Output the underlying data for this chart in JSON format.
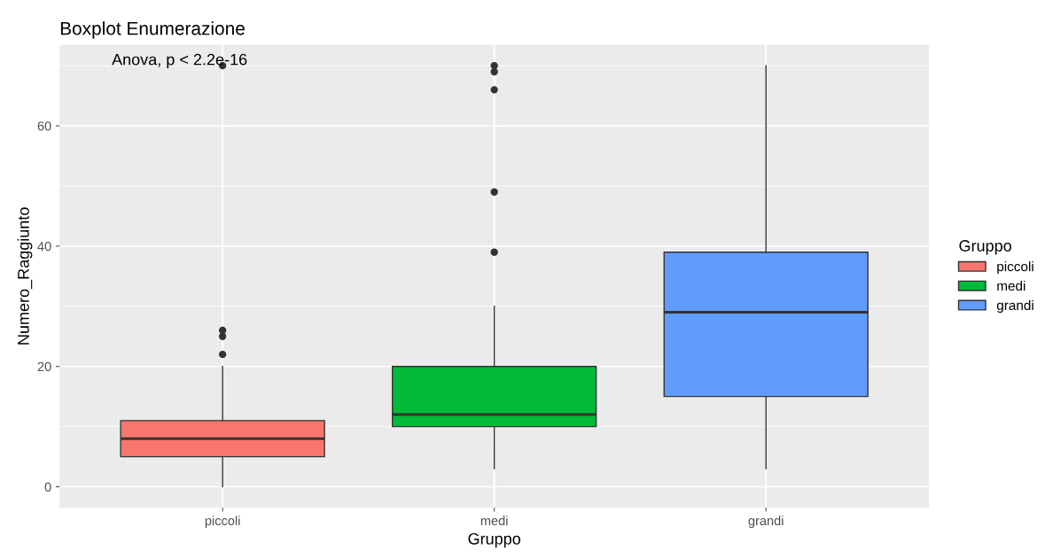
{
  "chart_data": {
    "type": "box",
    "title": "Boxplot Enumerazione",
    "xlabel": "Gruppo",
    "ylabel": "Numero_Raggiunto",
    "legend_title": "Gruppo",
    "categories": [
      "piccoli",
      "medi",
      "grandi"
    ],
    "series": [
      {
        "name": "piccoli",
        "color": "#f8766d",
        "boxes": [
          {
            "low": 0,
            "q1": 5,
            "median": 8,
            "q3": 11,
            "high": 20,
            "outliers": [
              22,
              25,
              26,
              70
            ]
          },
          null,
          null
        ]
      },
      {
        "name": "medi",
        "color": "#00ba38",
        "boxes": [
          null,
          {
            "low": 3,
            "q1": 10,
            "median": 12,
            "q3": 20,
            "high": 30,
            "outliers": [
              39,
              49,
              66,
              69,
              70
            ]
          },
          null
        ]
      },
      {
        "name": "grandi",
        "color": "#619cff",
        "boxes": [
          null,
          null,
          {
            "low": 3,
            "q1": 15,
            "median": 29,
            "q3": 39,
            "high": 70
          }
        ]
      }
    ],
    "ylim": [
      -3.5,
      73.5
    ],
    "yticks": [
      0,
      20,
      40,
      60
    ],
    "grid": true,
    "legend": "right",
    "annotations": [
      "Anova, p < 2.2e-16"
    ]
  }
}
